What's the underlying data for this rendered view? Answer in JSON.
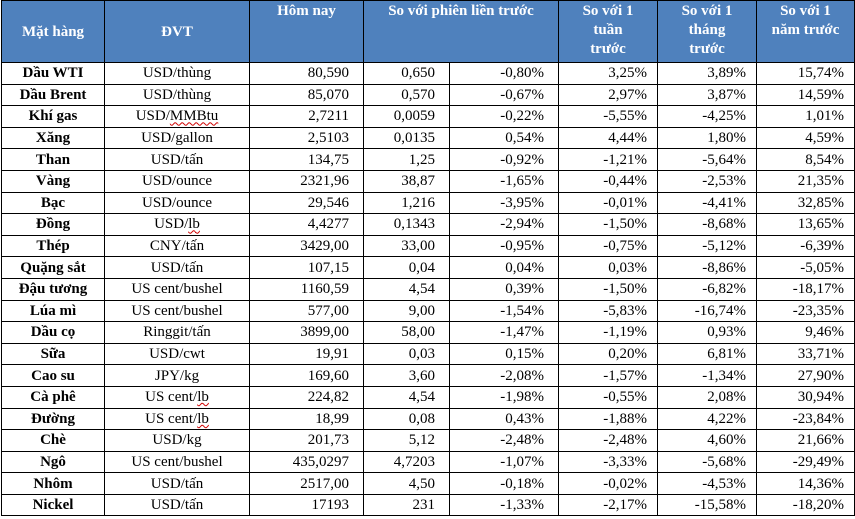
{
  "headers": {
    "item": "Mặt hàng",
    "unit": "ĐVT",
    "today": "Hôm nay",
    "vs_prev": "So với phiên liền trước",
    "vs_week": "So với 1 tuần trước",
    "vs_month": "So với 1 tháng trước",
    "vs_year": "So với 1 năm trước"
  },
  "rows": [
    {
      "name": "Dầu WTI",
      "unit": "USD/thùng",
      "today": "80,590",
      "chg": "0,650",
      "chg_pct": "-0,80%",
      "week": "3,25%",
      "month": "3,89%",
      "year": "15,74%"
    },
    {
      "name": "Dầu Brent",
      "unit": "USD/thùng",
      "today": "85,070",
      "chg": "0,570",
      "chg_pct": "-0,67%",
      "week": "2,97%",
      "month": "3,87%",
      "year": "14,59%"
    },
    {
      "name": "Khí gas",
      "unit": "USD/MMBtu",
      "today": "2,7211",
      "chg": "0,0059",
      "chg_pct": "-0,22%",
      "week": "-5,55%",
      "month": "-4,25%",
      "year": "1,01%"
    },
    {
      "name": "Xăng",
      "unit": "USD/gallon",
      "today": "2,5103",
      "chg": "0,0135",
      "chg_pct": "0,54%",
      "week": "4,44%",
      "month": "1,80%",
      "year": "4,59%"
    },
    {
      "name": "Than",
      "unit": "USD/tấn",
      "today": "134,75",
      "chg": "1,25",
      "chg_pct": "-0,92%",
      "week": "-1,21%",
      "month": "-5,64%",
      "year": "8,54%"
    },
    {
      "name": "Vàng",
      "unit": "USD/ounce",
      "today": "2321,96",
      "chg": "38,87",
      "chg_pct": "-1,65%",
      "week": "-0,44%",
      "month": "-2,53%",
      "year": "21,35%"
    },
    {
      "name": "Bạc",
      "unit": "USD/ounce",
      "today": "29,546",
      "chg": "1,216",
      "chg_pct": "-3,95%",
      "week": "-0,01%",
      "month": "-4,41%",
      "year": "32,85%"
    },
    {
      "name": "Đồng",
      "unit": "USD/lb",
      "today": "4,4277",
      "chg": "0,1343",
      "chg_pct": "-2,94%",
      "week": "-1,50%",
      "month": "-8,68%",
      "year": "13,65%"
    },
    {
      "name": "Thép",
      "unit": "CNY/tấn",
      "today": "3429,00",
      "chg": "33,00",
      "chg_pct": "-0,95%",
      "week": "-0,75%",
      "month": "-5,12%",
      "year": "-6,39%"
    },
    {
      "name": "Quặng sắt",
      "unit": "USD/tấn",
      "today": "107,15",
      "chg": "0,04",
      "chg_pct": "0,04%",
      "week": "0,03%",
      "month": "-8,86%",
      "year": "-5,05%"
    },
    {
      "name": "Đậu tương",
      "unit": "US cent/bushel",
      "today": "1160,59",
      "chg": "4,54",
      "chg_pct": "0,39%",
      "week": "-1,50%",
      "month": "-6,82%",
      "year": "-18,17%"
    },
    {
      "name": "Lúa mì",
      "unit": "US cent/bushel",
      "today": "577,00",
      "chg": "9,00",
      "chg_pct": "-1,54%",
      "week": "-5,83%",
      "month": "-16,74%",
      "year": "-23,35%"
    },
    {
      "name": "Dầu cọ",
      "unit": "Ringgit/tấn",
      "today": "3899,00",
      "chg": "58,00",
      "chg_pct": "-1,47%",
      "week": "-1,19%",
      "month": "0,93%",
      "year": "9,46%"
    },
    {
      "name": "Sữa",
      "unit": "USD/cwt",
      "today": "19,91",
      "chg": "0,03",
      "chg_pct": "0,15%",
      "week": "0,20%",
      "month": "6,81%",
      "year": "33,71%"
    },
    {
      "name": "Cao su",
      "unit": "JPY/kg",
      "today": "169,60",
      "chg": "3,60",
      "chg_pct": "-2,08%",
      "week": "-1,57%",
      "month": "-1,34%",
      "year": "27,90%"
    },
    {
      "name": "Cà phê",
      "unit": "US cent/lb",
      "today": "224,82",
      "chg": "4,54",
      "chg_pct": "-1,98%",
      "week": "-0,55%",
      "month": "2,08%",
      "year": "30,94%"
    },
    {
      "name": "Đường",
      "unit": "US cent/lb",
      "today": "18,99",
      "chg": "0,08",
      "chg_pct": "0,43%",
      "week": "-1,88%",
      "month": "4,22%",
      "year": "-23,84%"
    },
    {
      "name": "Chè",
      "unit": "USD/kg",
      "today": "201,73",
      "chg": "5,12",
      "chg_pct": "-2,48%",
      "week": "-2,48%",
      "month": "4,60%",
      "year": "21,66%"
    },
    {
      "name": "Ngô",
      "unit": "US cent/bushel",
      "today": "435,0297",
      "chg": "4,7203",
      "chg_pct": "-1,07%",
      "week": "-3,33%",
      "month": "-5,68%",
      "year": "-29,49%"
    },
    {
      "name": "Nhôm",
      "unit": "USD/tấn",
      "today": "2517,00",
      "chg": "4,50",
      "chg_pct": "-0,18%",
      "week": "-0,02%",
      "month": "-4,53%",
      "year": "14,36%"
    },
    {
      "name": "Nickel",
      "unit": "USD/tấn",
      "today": "17193",
      "chg": "231",
      "chg_pct": "-1,33%",
      "week": "-2,17%",
      "month": "-15,58%",
      "year": "-18,20%"
    }
  ]
}
